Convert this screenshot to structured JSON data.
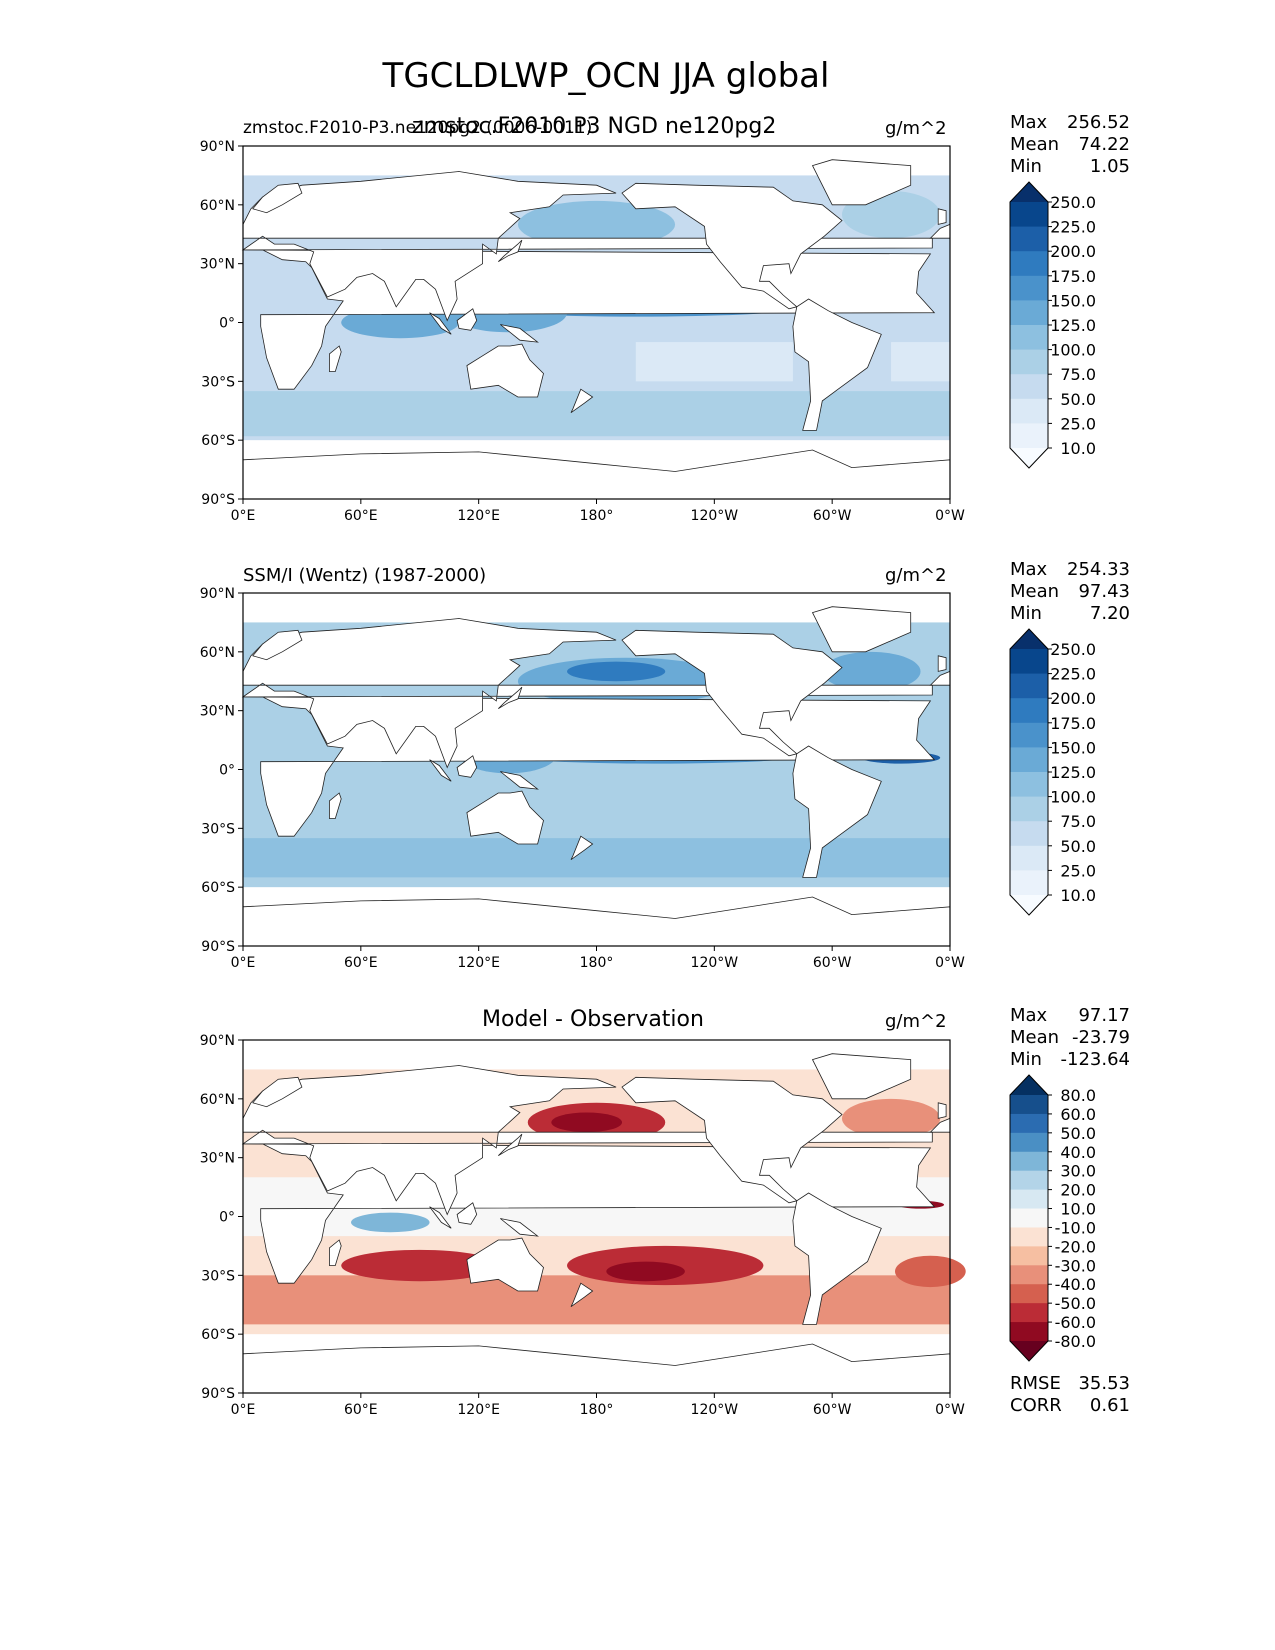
{
  "figure": {
    "title": "TGCLDLWP_OCN JJA global"
  },
  "axes": {
    "lat_labels": [
      "90°N",
      "60°N",
      "30°N",
      "0°",
      "30°S",
      "60°S",
      "90°S"
    ],
    "lon_labels": [
      "0°E",
      "60°E",
      "120°E",
      "180°",
      "120°W",
      "60°W",
      "0°W"
    ]
  },
  "panels": [
    {
      "left_title": "zmstoc.F2010-P3.ne120pg2 (0006-0011)",
      "center_title": "zmstoc.F2010.P3 NGD ne120pg2",
      "units": "g/m^2",
      "stats": [
        {
          "label": "Max",
          "value": "256.52"
        },
        {
          "label": "Mean",
          "value": "74.22"
        },
        {
          "label": "Min",
          "value": "1.05"
        }
      ]
    },
    {
      "left_title": "SSM/I (Wentz) (1987-2000)",
      "center_title": "",
      "units": "g/m^2",
      "stats": [
        {
          "label": "Max",
          "value": "254.33"
        },
        {
          "label": "Mean",
          "value": "97.43"
        },
        {
          "label": "Min",
          "value": "7.20"
        }
      ]
    },
    {
      "left_title": "",
      "center_title": "Model - Observation",
      "units": "g/m^2",
      "stats": [
        {
          "label": "Max",
          "value": "97.17"
        },
        {
          "label": "Mean",
          "value": "-23.79"
        },
        {
          "label": "Min",
          "value": "-123.64"
        }
      ],
      "extra_stats": [
        {
          "label": "RMSE",
          "value": "35.53"
        },
        {
          "label": "CORR",
          "value": "0.61"
        }
      ]
    }
  ],
  "colorbars": {
    "sequential": {
      "labels": [
        "250.0",
        "225.0",
        "200.0",
        "175.0",
        "150.0",
        "125.0",
        "100.0",
        "75.0",
        "50.0",
        "25.0",
        "10.0"
      ],
      "colors": [
        "#08306b",
        "#08468c",
        "#1c5fa8",
        "#2f7bbf",
        "#4a92cb",
        "#6aaad6",
        "#8dc0e0",
        "#abd0e6",
        "#c6dbef",
        "#dbe9f6",
        "#eaf2fb",
        "#f7fbff"
      ]
    },
    "diverging": {
      "labels": [
        "80.0",
        "60.0",
        "50.0",
        "40.0",
        "30.0",
        "20.0",
        "10.0",
        "-10.0",
        "-20.0",
        "-30.0",
        "-40.0",
        "-50.0",
        "-60.0",
        "-80.0"
      ],
      "colors": [
        "#053061",
        "#164f8c",
        "#2b6cb1",
        "#4a8fc4",
        "#7eb6d8",
        "#b3d4e8",
        "#d7e8f2",
        "#f7f7f7",
        "#fbe2d3",
        "#f6bfa2",
        "#e8907a",
        "#d5604f",
        "#bb2c36",
        "#900a21",
        "#67001f"
      ]
    }
  },
  "land_color": "#ffffff"
}
